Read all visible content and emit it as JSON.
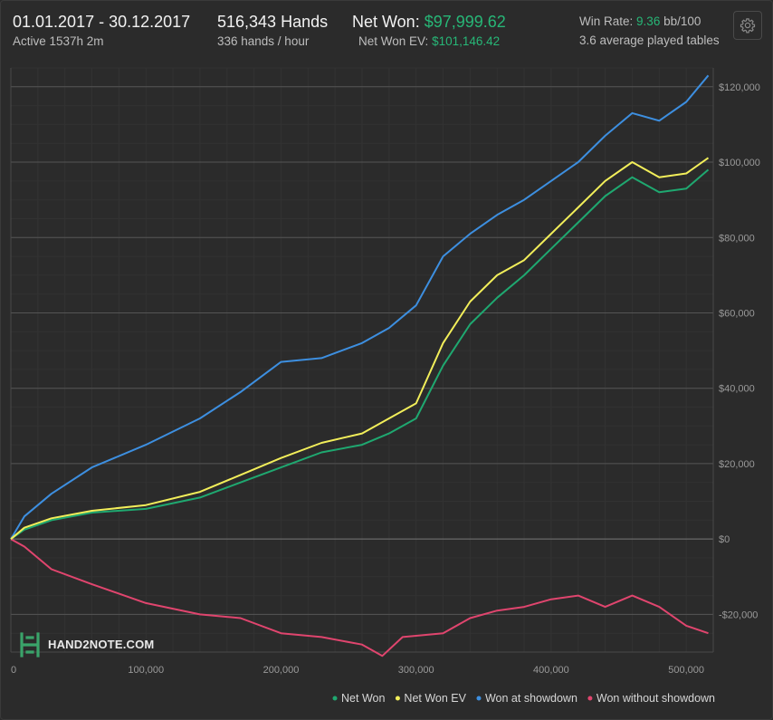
{
  "header": {
    "date_range": "01.01.2017 - 30.12.2017",
    "active": "Active 1537h 2m",
    "hands": "516,343 Hands",
    "hands_per_hour": "336 hands / hour",
    "net_won_label": "Net Won:",
    "net_won_value": "$97,999.62",
    "net_won_ev_label": "Net Won  EV:",
    "net_won_ev_value": "$101,146.42",
    "win_rate_label": "Win Rate:",
    "win_rate_value": "9.36",
    "win_rate_unit": "bb/100",
    "avg_tables": "3.6 average played tables",
    "settings_icon": "gear-icon"
  },
  "logo": {
    "text": "HAND2NOTE.COM"
  },
  "colors": {
    "net_won": "#1fa870",
    "net_won_ev": "#f2ee5a",
    "won_at_showdown": "#3d8fe0",
    "won_without_showdown": "#e0456e",
    "accent_green": "#27b777"
  },
  "chart_data": {
    "type": "line",
    "xlim": [
      0,
      520000
    ],
    "ylim": [
      -30000,
      125000
    ],
    "grid": true,
    "legend_position": "bottom-right",
    "x_ticks": [
      0,
      100000,
      200000,
      300000,
      400000,
      500000
    ],
    "x_tick_labels": [
      "0",
      "100,000",
      "200,000",
      "300,000",
      "400,000",
      "500,000"
    ],
    "y_ticks": [
      -20000,
      0,
      20000,
      40000,
      60000,
      80000,
      100000,
      120000
    ],
    "y_tick_labels": [
      "-$20,000",
      "$0",
      "$20,000",
      "$40,000",
      "$60,000",
      "$80,000",
      "$100,000",
      "$120,000"
    ],
    "series": [
      {
        "name": "Net Won",
        "color": "#1fa870",
        "x": [
          0,
          10000,
          30000,
          60000,
          100000,
          140000,
          170000,
          200000,
          230000,
          260000,
          280000,
          300000,
          320000,
          340000,
          360000,
          380000,
          400000,
          420000,
          440000,
          460000,
          480000,
          500000,
          516343
        ],
        "y": [
          0,
          2500,
          5000,
          7000,
          8000,
          11000,
          15000,
          19000,
          23000,
          25000,
          28000,
          32000,
          46000,
          57000,
          64000,
          70000,
          77000,
          84000,
          91000,
          96000,
          92000,
          93000,
          98000
        ]
      },
      {
        "name": "Net Won  EV",
        "color": "#f2ee5a",
        "x": [
          0,
          10000,
          30000,
          60000,
          100000,
          140000,
          170000,
          200000,
          230000,
          260000,
          280000,
          300000,
          320000,
          340000,
          360000,
          380000,
          400000,
          420000,
          440000,
          460000,
          480000,
          500000,
          516343
        ],
        "y": [
          0,
          3000,
          5500,
          7500,
          9000,
          12500,
          17000,
          21500,
          25500,
          28000,
          32000,
          36000,
          52000,
          63000,
          70000,
          74000,
          81000,
          88000,
          95000,
          100000,
          96000,
          97000,
          101146
        ]
      },
      {
        "name": "Won at showdown",
        "color": "#3d8fe0",
        "x": [
          0,
          10000,
          30000,
          60000,
          100000,
          140000,
          170000,
          200000,
          230000,
          260000,
          280000,
          300000,
          320000,
          340000,
          360000,
          380000,
          400000,
          420000,
          440000,
          460000,
          480000,
          500000,
          516343
        ],
        "y": [
          0,
          6000,
          12000,
          19000,
          25000,
          32000,
          39000,
          47000,
          48000,
          52000,
          56000,
          62000,
          75000,
          81000,
          86000,
          90000,
          95000,
          100000,
          107000,
          113000,
          111000,
          116000,
          123000
        ]
      },
      {
        "name": "Won without showdown",
        "color": "#e0456e",
        "x": [
          0,
          10000,
          30000,
          60000,
          100000,
          140000,
          170000,
          200000,
          230000,
          260000,
          275000,
          290000,
          320000,
          340000,
          360000,
          380000,
          400000,
          420000,
          440000,
          460000,
          480000,
          500000,
          516343
        ],
        "y": [
          0,
          -2000,
          -8000,
          -12000,
          -17000,
          -20000,
          -21000,
          -25000,
          -26000,
          -28000,
          -31000,
          -26000,
          -25000,
          -21000,
          -19000,
          -18000,
          -16000,
          -15000,
          -18000,
          -15000,
          -18000,
          -23000,
          -25000
        ]
      }
    ]
  }
}
